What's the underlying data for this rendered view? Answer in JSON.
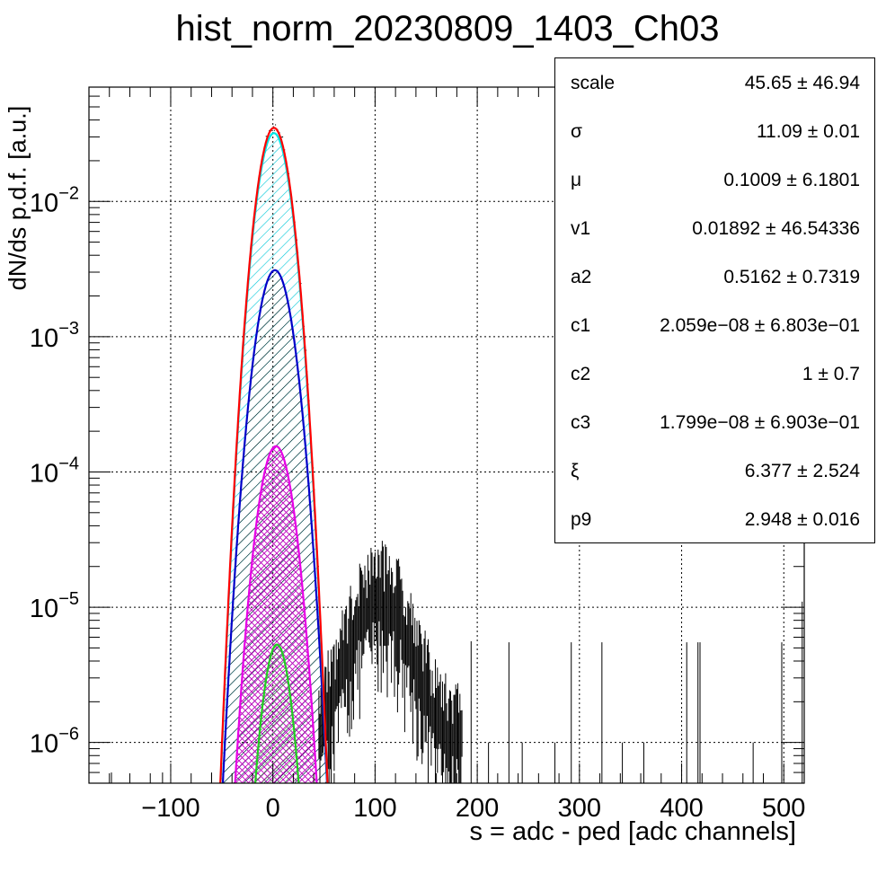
{
  "chart_data": {
    "type": "line",
    "title": "hist_norm_20230809_1403_Ch03",
    "xlabel": "s = adc - ped [adc channels]",
    "ylabel": "dN/ds p.d.f. [a.u.]",
    "xlim": [
      -180,
      520
    ],
    "ylim": [
      5e-07,
      0.07
    ],
    "yscale": "log",
    "grid": true,
    "x_ticks": [
      -100,
      0,
      100,
      200,
      300,
      400,
      500
    ],
    "x_tick_labels": [
      "−100",
      "0",
      "100",
      "200",
      "300",
      "400",
      "500"
    ],
    "y_ticks": [
      {
        "value": 0.01,
        "base": "10",
        "exp": "−2"
      },
      {
        "value": 0.001,
        "base": "10",
        "exp": "−3"
      },
      {
        "value": 0.0001,
        "base": "10",
        "exp": "−4"
      },
      {
        "value": 1e-05,
        "base": "10",
        "exp": "−5"
      },
      {
        "value": 1e-06,
        "base": "10",
        "exp": "−6"
      }
    ],
    "series": [
      {
        "role": "total fit",
        "color": "#ff0000",
        "peak": 0.035,
        "mu": 1,
        "sigma": 11.1
      },
      {
        "role": "component 1",
        "color": "#00e5e5",
        "peak": 0.032,
        "mu": 1,
        "sigma": 11.1,
        "fill": "cyan-hatch"
      },
      {
        "role": "component 2",
        "color": "#0000c8",
        "peak": 0.0031,
        "mu": 2,
        "sigma": 12.2,
        "fill": "black-hatch"
      },
      {
        "role": "component 3",
        "color": "#e600e6",
        "peak": 0.000155,
        "mu": 3,
        "sigma": 11.8,
        "fill": "magenta-crosshatch"
      },
      {
        "role": "component 4",
        "color": "#22cc22",
        "peak": 5.3e-06,
        "mu": 4,
        "sigma": 9.8,
        "fill": "green-hatch"
      }
    ],
    "histogram": {
      "color": "#000000",
      "core": {
        "peak": 0.035,
        "mu": 1,
        "sigma": 11.1
      },
      "bump": {
        "center": 105,
        "sigma": 22,
        "amplitude": 1.2e-05,
        "range": [
          45,
          185
        ]
      },
      "isolated_spikes": [
        {
          "x": -158,
          "y": 6e-07
        },
        {
          "x": -108,
          "y": 6e-07
        },
        {
          "x": -60,
          "y": 6e-07
        },
        {
          "x": 194,
          "y": 5.6e-06
        },
        {
          "x": 211,
          "y": 1e-06
        },
        {
          "x": 231,
          "y": 5.5e-06
        },
        {
          "x": 244,
          "y": 1e-06
        },
        {
          "x": 276,
          "y": 1e-06
        },
        {
          "x": 292,
          "y": 5.5e-06
        },
        {
          "x": 322,
          "y": 5.5e-06
        },
        {
          "x": 342,
          "y": 1e-06
        },
        {
          "x": 363,
          "y": 1e-06
        },
        {
          "x": 405,
          "y": 5.5e-06
        },
        {
          "x": 416,
          "y": 5.5e-06
        },
        {
          "x": 418,
          "y": 5.5e-06
        },
        {
          "x": 470,
          "y": 1e-06
        },
        {
          "x": 498,
          "y": 5.5e-06
        },
        {
          "x": 518,
          "y": 1.1e-05
        }
      ]
    }
  },
  "stats_box": {
    "rows": [
      {
        "name": "scale",
        "value": "45.65 ± 46.94"
      },
      {
        "name": "σ",
        "value": "11.09 ± 0.01"
      },
      {
        "name": "μ",
        "value": "0.1009 ± 6.1801"
      },
      {
        "name": "v1",
        "value": "0.01892 ± 46.54336"
      },
      {
        "name": "a2",
        "value": "0.5162 ± 0.7319"
      },
      {
        "name": "c1",
        "value": "2.059e−08 ± 6.803e−01"
      },
      {
        "name": "c2",
        "value": "1 ± 0.7"
      },
      {
        "name": "c3",
        "value": "1.799e−08 ± 6.903e−01"
      },
      {
        "name": "ξ",
        "value": "6.377 ± 2.524"
      },
      {
        "name": "p9",
        "value": "2.948 ± 0.016"
      }
    ]
  }
}
